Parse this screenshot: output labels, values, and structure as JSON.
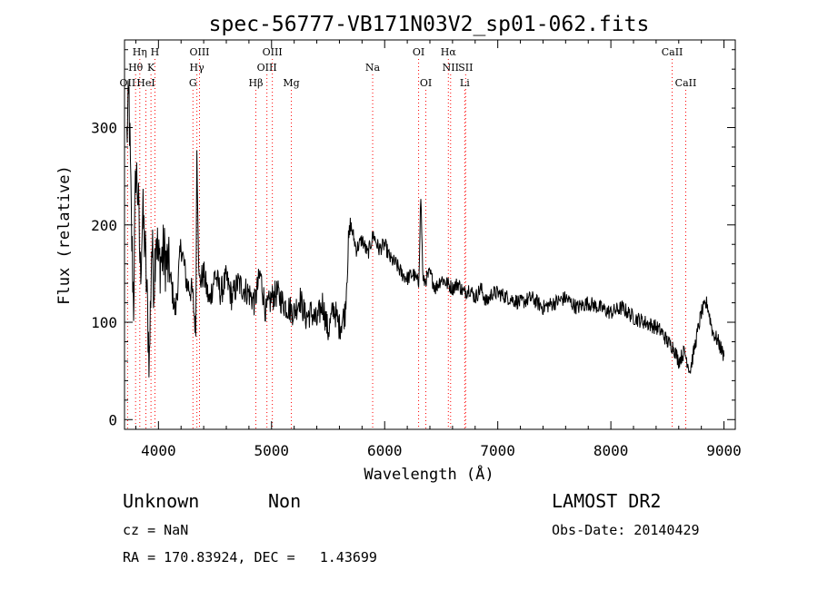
{
  "chart_data": {
    "type": "line",
    "title": "spec-56777-VB171N03V2_sp01-062.fits",
    "xlabel": "Wavelength (Å)",
    "ylabel": "Flux (relative)",
    "xlim": [
      3700,
      9100
    ],
    "ylim": [
      -10,
      390
    ],
    "xticks": [
      4000,
      5000,
      6000,
      7000,
      8000,
      9000
    ],
    "yticks": [
      0,
      100,
      200,
      300
    ],
    "grid": false,
    "line_color": "#000000",
    "marker_color": "#ff0000",
    "spectrum": {
      "x": [
        3720,
        3740,
        3760,
        3780,
        3800,
        3820,
        3840,
        3860,
        3880,
        3900,
        3920,
        3940,
        3960,
        3980,
        4000,
        4050,
        4100,
        4150,
        4200,
        4250,
        4300,
        4330,
        4340,
        4360,
        4400,
        4450,
        4500,
        4550,
        4600,
        4650,
        4700,
        4750,
        4800,
        4850,
        4900,
        4950,
        5000,
        5050,
        5100,
        5150,
        5200,
        5250,
        5300,
        5350,
        5400,
        5450,
        5500,
        5550,
        5600,
        5650,
        5680,
        5700,
        5750,
        5800,
        5850,
        5900,
        5950,
        6000,
        6050,
        6100,
        6150,
        6200,
        6250,
        6300,
        6320,
        6340,
        6400,
        6450,
        6500,
        6550,
        6600,
        6650,
        6700,
        6750,
        6800,
        6850,
        6900,
        6950,
        7000,
        7100,
        7200,
        7300,
        7400,
        7500,
        7600,
        7700,
        7800,
        7900,
        8000,
        8100,
        8200,
        8300,
        8400,
        8450,
        8500,
        8550,
        8600,
        8650,
        8700,
        8750,
        8800,
        8850,
        8900,
        8950,
        9000
      ],
      "y": [
        290,
        330,
        200,
        120,
        260,
        230,
        150,
        210,
        180,
        120,
        60,
        180,
        140,
        200,
        160,
        170,
        150,
        110,
        180,
        140,
        130,
        90,
        280,
        140,
        150,
        120,
        150,
        130,
        145,
        125,
        140,
        135,
        130,
        120,
        150,
        110,
        125,
        130,
        120,
        115,
        110,
        125,
        105,
        110,
        100,
        120,
        90,
        115,
        95,
        110,
        180,
        200,
        175,
        185,
        170,
        190,
        175,
        180,
        165,
        160,
        150,
        145,
        150,
        140,
        230,
        140,
        150,
        135,
        145,
        140,
        135,
        140,
        130,
        135,
        125,
        135,
        120,
        130,
        130,
        125,
        120,
        125,
        115,
        120,
        125,
        115,
        120,
        115,
        110,
        115,
        105,
        100,
        95,
        90,
        80,
        75,
        60,
        70,
        50,
        80,
        110,
        120,
        90,
        80,
        65
      ]
    },
    "spectral_lines": [
      {
        "label": "OII",
        "x": 3727,
        "row": 2
      },
      {
        "label": "Hθ",
        "x": 3798,
        "row": 1
      },
      {
        "label": "Hη",
        "x": 3835,
        "row": 0
      },
      {
        "label": "HeI",
        "x": 3889,
        "row": 2
      },
      {
        "label": "K",
        "x": 3934,
        "row": 1
      },
      {
        "label": "H",
        "x": 3969,
        "row": 0
      },
      {
        "label": "G",
        "x": 4305,
        "row": 2
      },
      {
        "label": "Hγ",
        "x": 4340,
        "row": 1
      },
      {
        "label": "OIII",
        "x": 4363,
        "row": 0
      },
      {
        "label": "Hβ",
        "x": 4861,
        "row": 2
      },
      {
        "label": "OIII",
        "x": 4959,
        "row": 1
      },
      {
        "label": "OIII",
        "x": 5007,
        "row": 0
      },
      {
        "label": "Mg",
        "x": 5175,
        "row": 2
      },
      {
        "label": "Na",
        "x": 5894,
        "row": 1
      },
      {
        "label": "OI",
        "x": 6300,
        "row": 0
      },
      {
        "label": "OI",
        "x": 6364,
        "row": 2
      },
      {
        "label": "Hα",
        "x": 6563,
        "row": 0
      },
      {
        "label": "NII",
        "x": 6583,
        "row": 1
      },
      {
        "label": "SII",
        "x": 6716,
        "row": 1
      },
      {
        "label": "Li",
        "x": 6708,
        "row": 2
      },
      {
        "label": "CaII",
        "x": 8542,
        "row": 0
      },
      {
        "label": "CaII",
        "x": 8662,
        "row": 2
      }
    ]
  },
  "info": {
    "class": "Unknown",
    "subclass": "Non",
    "survey": "LAMOST DR2",
    "redshift": "cz = NaN",
    "obs_date": "Obs-Date: 20140429",
    "coords": "RA = 170.83924, DEC =   1.43699"
  }
}
